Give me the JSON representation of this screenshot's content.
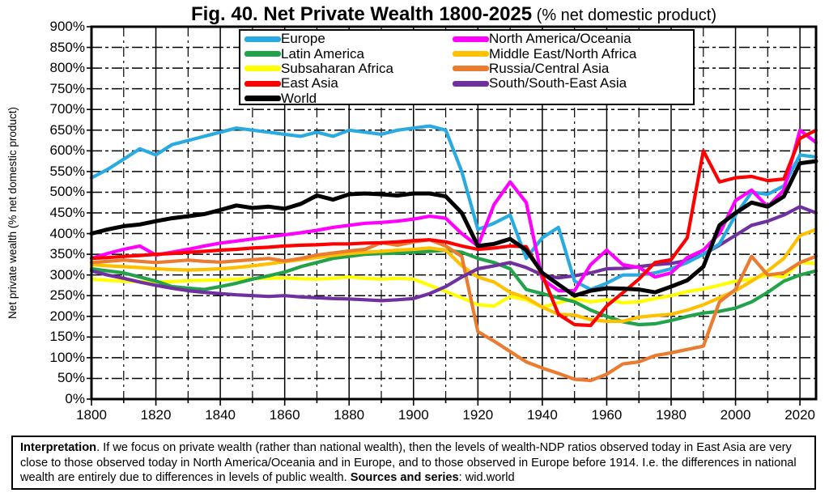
{
  "title": {
    "main": "Fig. 40. Net Private Wealth 1800-2025",
    "suffix": " (% net domestic product)"
  },
  "y_axis": {
    "label": "Net private wealth (% net domestic product)",
    "tick_format": "percent",
    "ticks": [
      0,
      50,
      100,
      150,
      200,
      250,
      300,
      350,
      400,
      450,
      500,
      550,
      600,
      650,
      700,
      750,
      800,
      850,
      900
    ]
  },
  "x_axis": {
    "ticks": [
      1800,
      1820,
      1840,
      1860,
      1880,
      1900,
      1920,
      1940,
      1960,
      1980,
      2000,
      2020
    ],
    "minor_step": 10
  },
  "legend": {
    "columns": [
      [
        "Europe",
        "Latin America",
        "Subsaharan Africa",
        "East Asia",
        "World"
      ],
      [
        "North America/Oceania",
        "Middle East/North Africa",
        "Russia/Central Asia",
        "South/South-East Asia"
      ]
    ]
  },
  "chart_data": {
    "type": "line",
    "title": "Fig. 40. Net Private Wealth 1800-2025 (% net domestic product)",
    "xlabel": "",
    "ylabel": "Net private wealth (% net domestic product)",
    "xlim": [
      1800,
      2025
    ],
    "ylim": [
      0,
      900
    ],
    "grid": true,
    "legend_position": "top-center",
    "x": [
      1800,
      1805,
      1810,
      1815,
      1820,
      1825,
      1830,
      1835,
      1840,
      1845,
      1850,
      1855,
      1860,
      1865,
      1870,
      1875,
      1880,
      1885,
      1890,
      1895,
      1900,
      1905,
      1910,
      1915,
      1920,
      1925,
      1930,
      1935,
      1940,
      1945,
      1950,
      1955,
      1960,
      1965,
      1970,
      1975,
      1980,
      1985,
      1990,
      1995,
      2000,
      2005,
      2010,
      2015,
      2020,
      2025
    ],
    "series": [
      {
        "name": "Subsaharan Africa",
        "color": "#FFFF00",
        "values": [
          290,
          287,
          285,
          284,
          283,
          284,
          286,
          287,
          288,
          290,
          291,
          292,
          293,
          291,
          290,
          292,
          295,
          292,
          290,
          292,
          290,
          275,
          260,
          245,
          228,
          225,
          248,
          240,
          222,
          233,
          243,
          235,
          240,
          233,
          235,
          243,
          250,
          260,
          266,
          275,
          285,
          290,
          300,
          295,
          330,
          328
        ]
      },
      {
        "name": "Latin America",
        "color": "#22A24B",
        "values": [
          315,
          310,
          305,
          295,
          285,
          272,
          268,
          265,
          272,
          280,
          290,
          298,
          307,
          320,
          330,
          340,
          345,
          350,
          352,
          353,
          355,
          357,
          360,
          355,
          340,
          330,
          315,
          265,
          255,
          245,
          235,
          215,
          200,
          187,
          180,
          182,
          190,
          200,
          208,
          212,
          220,
          235,
          258,
          285,
          300,
          310
        ]
      },
      {
        "name": "Middle East/North Africa",
        "color": "#FFC000",
        "values": [
          325,
          322,
          320,
          318,
          315,
          313,
          312,
          313,
          315,
          318,
          322,
          327,
          332,
          337,
          342,
          347,
          352,
          355,
          357,
          360,
          362,
          365,
          360,
          322,
          295,
          283,
          258,
          245,
          222,
          205,
          203,
          192,
          188,
          188,
          198,
          202,
          205,
          215,
          228,
          245,
          262,
          285,
          310,
          340,
          395,
          410
        ]
      },
      {
        "name": "Russia/Central Asia",
        "color": "#E97C30",
        "values": [
          330,
          333,
          336,
          333,
          330,
          333,
          336,
          333,
          331,
          334,
          337,
          340,
          334,
          340,
          348,
          353,
          358,
          362,
          378,
          372,
          380,
          385,
          370,
          345,
          163,
          140,
          115,
          90,
          75,
          62,
          48,
          45,
          60,
          85,
          90,
          105,
          112,
          120,
          128,
          235,
          265,
          345,
          300,
          305,
          330,
          345
        ]
      },
      {
        "name": "South/South-East Asia",
        "color": "#7030A0",
        "values": [
          310,
          300,
          292,
          283,
          275,
          268,
          262,
          258,
          255,
          252,
          250,
          248,
          250,
          247,
          245,
          243,
          242,
          240,
          238,
          240,
          243,
          255,
          272,
          295,
          315,
          322,
          330,
          318,
          300,
          293,
          298,
          305,
          315,
          316,
          320,
          325,
          328,
          335,
          350,
          372,
          396,
          420,
          430,
          445,
          465,
          450
        ]
      },
      {
        "name": "Europe",
        "color": "#29ABE2",
        "values": [
          535,
          555,
          580,
          605,
          590,
          615,
          625,
          635,
          645,
          655,
          650,
          645,
          640,
          635,
          645,
          635,
          650,
          645,
          640,
          650,
          655,
          660,
          650,
          550,
          410,
          425,
          445,
          340,
          390,
          415,
          285,
          265,
          280,
          300,
          300,
          305,
          315,
          330,
          350,
          375,
          445,
          500,
          495,
          515,
          590,
          585
        ]
      },
      {
        "name": "North America/Oceania",
        "color": "#FF00FF",
        "values": [
          340,
          352,
          362,
          370,
          348,
          355,
          362,
          370,
          377,
          382,
          387,
          392,
          397,
          402,
          408,
          415,
          420,
          425,
          427,
          430,
          435,
          442,
          437,
          400,
          370,
          470,
          525,
          475,
          290,
          262,
          262,
          325,
          360,
          325,
          318,
          295,
          305,
          342,
          360,
          400,
          480,
          505,
          465,
          505,
          650,
          620
        ]
      },
      {
        "name": "East Asia",
        "color": "#FF0000",
        "values": [
          340,
          342,
          345,
          347,
          350,
          352,
          355,
          357,
          360,
          362,
          365,
          367,
          370,
          372,
          373,
          375,
          375,
          377,
          378,
          380,
          383,
          385,
          380,
          370,
          362,
          365,
          370,
          368,
          300,
          205,
          180,
          178,
          225,
          257,
          290,
          330,
          337,
          390,
          600,
          525,
          535,
          538,
          528,
          532,
          630,
          650
        ]
      },
      {
        "name": "World",
        "color": "#000000",
        "values": [
          400,
          410,
          418,
          422,
          430,
          437,
          442,
          447,
          457,
          468,
          462,
          465,
          460,
          472,
          492,
          482,
          495,
          497,
          495,
          492,
          497,
          497,
          490,
          450,
          370,
          375,
          387,
          360,
          305,
          277,
          250,
          262,
          268,
          267,
          265,
          258,
          272,
          287,
          320,
          420,
          450,
          475,
          465,
          490,
          570,
          575
        ]
      }
    ]
  },
  "interpretation": {
    "heading": "Interpretation",
    "body": ". If we focus on private wealth (rather than national wealth), then the levels of wealth-NDP ratios observed today in East Asia are very close to those observed today in North America/Oceania and in Europe, and to those observed in Europe before 1914. I.e. the differences in national wealth are entirely due to differences in levels of public wealth. ",
    "sources_label": "Sources and series",
    "sources_value": ": wid.world"
  }
}
